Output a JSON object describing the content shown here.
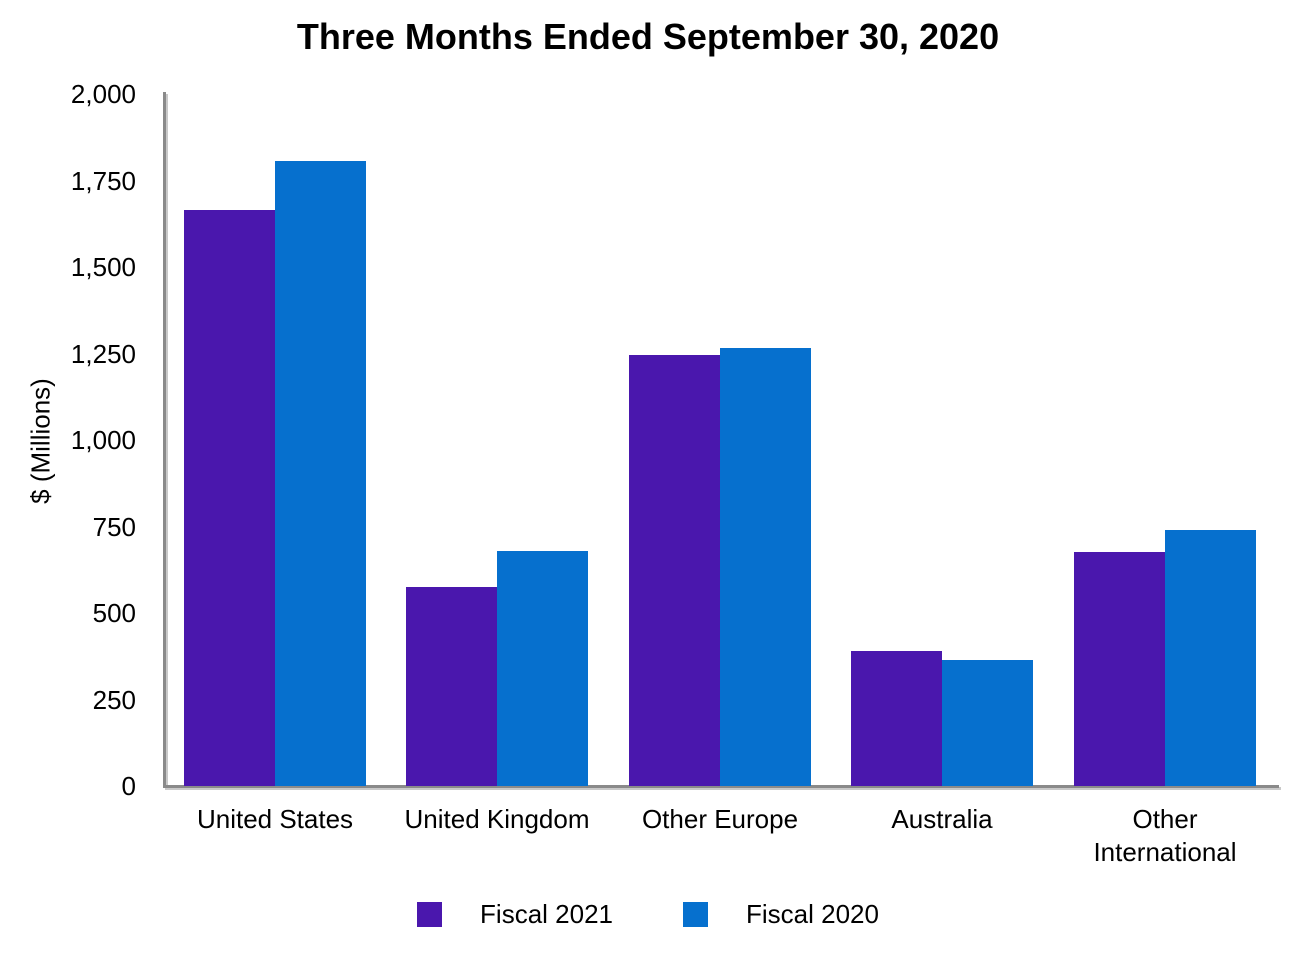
{
  "title": "Three Months Ended September 30, 2020",
  "colors": {
    "fiscal2021": "#4A17AD",
    "fiscal2020": "#0670CE",
    "axis": "#8A8A8A",
    "axis_shadow": "#C9C9C9",
    "text": "#000000",
    "background": "#FFFFFF"
  },
  "chart_data": {
    "type": "bar",
    "title": "Three Months Ended September 30, 2020",
    "xlabel": "",
    "ylabel": "$ (Millions)",
    "ylim": [
      0,
      2000
    ],
    "grid": false,
    "legend_position": "bottom",
    "categories": [
      "United States",
      "United Kingdom",
      "Other Europe",
      "Australia",
      "Other International"
    ],
    "series": [
      {
        "name": "Fiscal 2021",
        "color_key": "fiscal2021",
        "values": [
          1665,
          575,
          1245,
          390,
          675
        ]
      },
      {
        "name": "Fiscal 2020",
        "color_key": "fiscal2020",
        "values": [
          1805,
          680,
          1265,
          365,
          740
        ]
      }
    ],
    "y_ticks": [
      0,
      250,
      500,
      750,
      1000,
      1250,
      1500,
      1750,
      2000
    ],
    "y_tick_labels": [
      "0",
      "250",
      "500",
      "750",
      "1,000",
      "1,250",
      "1,500",
      "1,750",
      "2,000"
    ]
  }
}
